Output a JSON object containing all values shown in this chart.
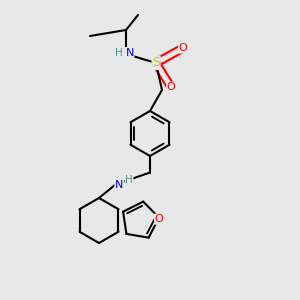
{
  "bg_color": "#e8e8e8",
  "atom_colors": {
    "C": "#000000",
    "N": "#0000ff",
    "S": "#cccc00",
    "O": "#ff0000",
    "H": "#4a9090"
  },
  "bond_color": "#000000",
  "bond_width": 1.5,
  "fig_size": [
    3.0,
    3.0
  ],
  "dpi": 100
}
